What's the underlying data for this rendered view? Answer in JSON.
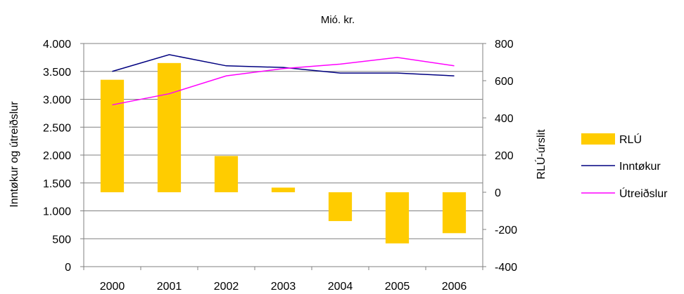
{
  "chart_data": {
    "type": "bar",
    "title": "Mió. kr.",
    "categories": [
      "2000",
      "2001",
      "2002",
      "2003",
      "2004",
      "2005",
      "2006"
    ],
    "left_axis": {
      "label": "Inntøkur og útreiðslur",
      "ylim": [
        0,
        4000
      ],
      "ticks": [
        0,
        500,
        1000,
        1500,
        2000,
        2500,
        3000,
        3500,
        4000
      ],
      "tick_labels": [
        "0",
        "500",
        "1.000",
        "1.500",
        "2.000",
        "2.500",
        "3.000",
        "3.500",
        "4.000"
      ]
    },
    "right_axis": {
      "label": "RLÚ-úrslit",
      "ylim": [
        -400,
        800
      ],
      "ticks": [
        -400,
        -200,
        0,
        200,
        400,
        600,
        800
      ],
      "tick_labels": [
        "-400",
        "-200",
        "0",
        "200",
        "400",
        "600",
        "800"
      ]
    },
    "series": [
      {
        "name": "RLÚ",
        "kind": "bar",
        "axis": "right",
        "color": "#FFCC00",
        "values": [
          605,
          695,
          195,
          25,
          -155,
          -275,
          -220
        ]
      },
      {
        "name": "Inntøkur",
        "kind": "line",
        "axis": "left",
        "color": "#000080",
        "values": [
          3500,
          3800,
          3600,
          3570,
          3470,
          3470,
          3420
        ]
      },
      {
        "name": "Útreiðslur",
        "kind": "line",
        "axis": "left",
        "color": "#FF00FF",
        "values": [
          2900,
          3100,
          3420,
          3550,
          3630,
          3750,
          3600
        ]
      }
    ],
    "legend": "right",
    "grid": "horizontal"
  }
}
